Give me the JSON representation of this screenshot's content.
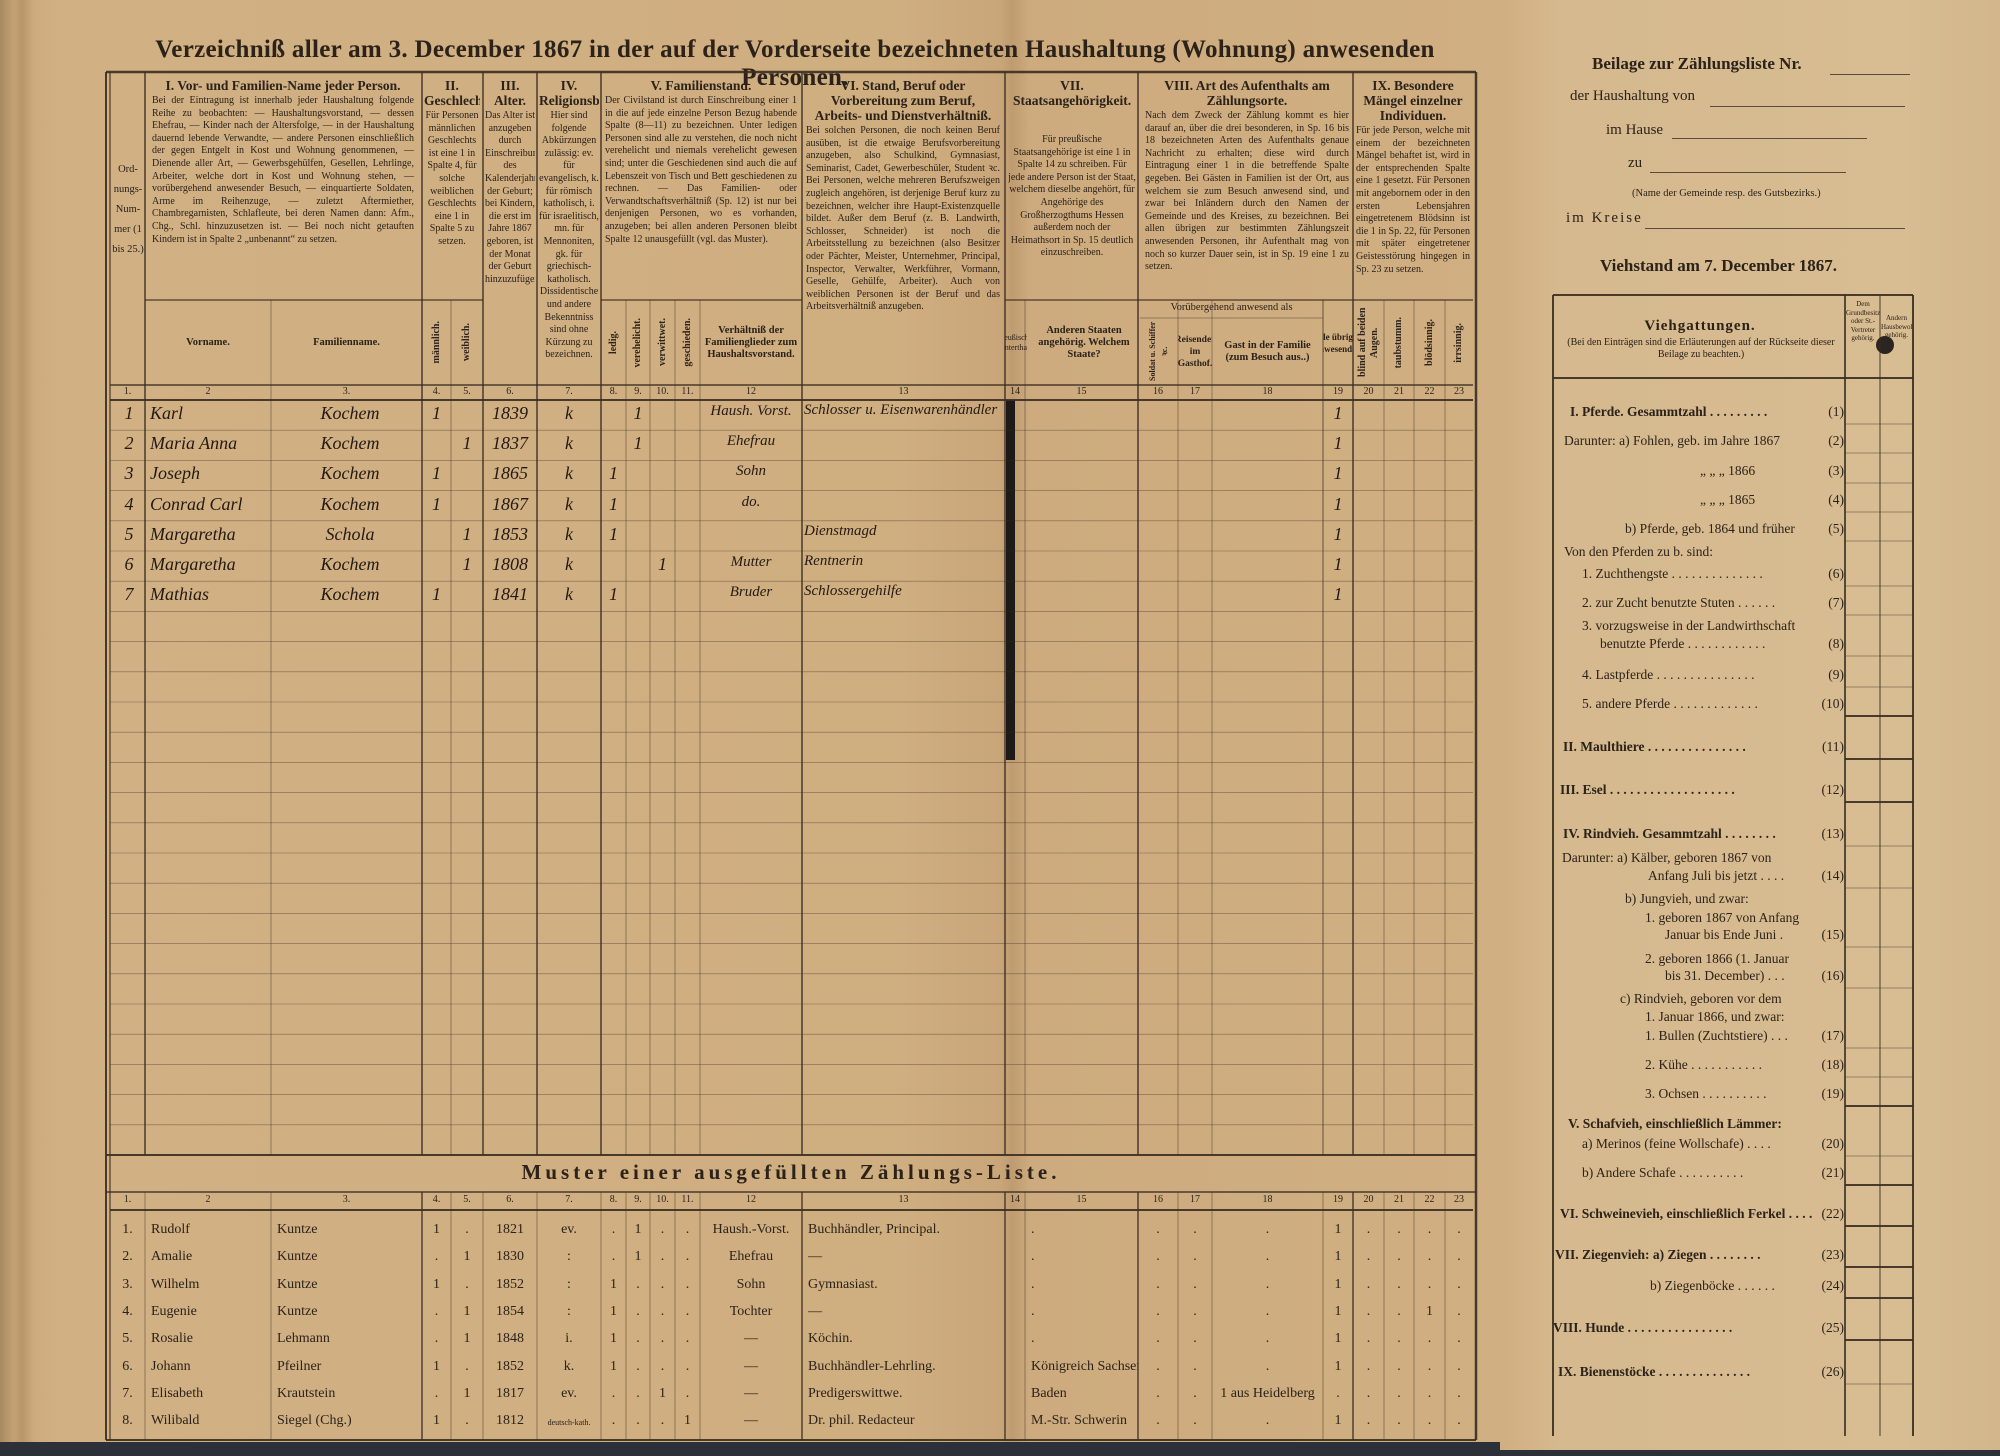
{
  "title": "Verzeichniß aller am 3. December 1867 in der auf der Vorderseite bezeichneten Haushaltung (Wohnung) anwesenden Personen.",
  "header": {
    "ord": "Ord- nungs- Num- mer (1 bis 25.)",
    "col1_title": "I. Vor- und Familien-Name jeder Person.",
    "col1_text": "Bei der Eintragung ist innerhalb jeder Haushaltung folgende Reihe zu beobachten: — Haushaltungsvorstand, — dessen Ehefrau, — Kinder nach der Altersfolge, — in der Haushaltung dauernd lebende Verwandte, — andere Personen einschließlich der gegen Entgelt in Kost und Wohnung genommenen, — Dienende aller Art, — Gewerbsgehülfen, Gesellen, Lehrlinge, Arbeiter, welche dort in Kost und Wohnung stehen, — vorübergehend anwesender Besuch, — einquartierte Soldaten, Arme im Reihenzuge, — zuletzt Aftermiether, Chambregarnisten, Schlafleute, bei deren Namen dann: Afm., Chg., Schl. hinzuzusetzen ist. — Bei noch nicht getauften Kindern ist in Spalte 2 „unbenannt“ zu setzen.",
    "col2_title": "II. Geschlecht.",
    "col2_text": "Für Personen männlichen Geschlechts ist eine 1 in Spalte 4, für solche weiblichen Geschlechts eine 1 in Spalte 5 zu setzen.",
    "col3_title": "III. Alter.",
    "col3_text": "Das Alter ist anzugeben durch Einschreibung des Kalenderjahres der Geburt; bei Kindern, die erst im Jahre 1867 geboren, ist der Monat der Geburt hinzuzufügen.",
    "col4_title": "IV. Religionsbekenntniß.",
    "col4_text": "Hier sind folgende Abkürzungen zulässig: ev. für evangelisch, k. für römisch katholisch, i. für israelitisch, mn. für Mennoniten, gk. für griechisch-katholisch. Dissidentische und andere Bekenntniss sind ohne Kürzung zu bezeichnen.",
    "col5_title": "V. Familienstand.",
    "col5_text": "Der Civilstand ist durch Einschreibung einer 1 in die auf jede einzelne Person Bezug habende Spalte (8—11) zu bezeichnen. Unter ledigen Personen sind alle zu verstehen, die noch nicht verehelicht und niemals verehelicht gewesen sind; unter die Geschiedenen sind auch die auf Lebenszeit von Tisch und Bett geschiedenen zu rechnen. — Das Familien- oder Verwandtschaftsverhältniß (Sp. 12) ist nur bei denjenigen Personen, wo es vorhanden, anzugeben; bei allen anderen Personen bleibt Spalte 12 unausgefüllt (vgl. das Muster).",
    "col6_title": "VI. Stand, Beruf oder Vorbereitung zum Beruf, Arbeits- und Dienstverhältniß.",
    "col6_text": "Bei solchen Personen, die noch keinen Beruf ausüben, ist die etwaige Berufsvorbereitung anzugeben, also Schulkind, Gymnasiast, Seminarist, Cadet, Gewerbeschüler, Student ꝛc. Bei Personen, welche mehreren Berufszweigen zugleich angehören, ist derjenige Beruf kurz zu bezeichnen, welcher ihre Haupt-Existenzquelle bildet. Außer dem Beruf (z. B. Landwirth, Schlosser, Schneider) ist noch die Arbeitsstellung zu bezeichnen (also Besitzer oder Pächter, Meister, Unternehmer, Principal, Inspector, Verwalter, Werkführer, Vormann, Geselle, Gehülfe, Arbeiter). Auch von weiblichen Personen ist der Beruf und das Arbeitsverhältniß anzugeben.",
    "col7_title": "VII. Staatsangehörigkeit.",
    "col7_text": "Für preußische Staatsangehörige ist eine 1 in Spalte 14 zu schreiben. Für jede andere Person ist der Staat, welchem dieselbe angehört, für Angehörige des Großherzogthums Hessen außerdem noch der Heimathsort in Sp. 15 deutlich einzuschreiben.",
    "col8_title": "VIII. Art des Aufenthalts am Zählungsorte.",
    "col8_text": "Nach dem Zweck der Zählung kommt es hier darauf an, über die drei besonderen, in Sp. 16 bis 18 bezeichneten Arten des Aufenthalts genaue Nachricht zu erhalten; diese wird durch Eintragung einer 1 in die betreffende Spalte gegeben. Bei Gästen in Familien ist der Ort, aus welchem sie zum Besuch anwesend sind, und zwar bei Inländern durch den Namen der Gemeinde und des Kreises, zu bezeichnen. Bei allen übrigen zur bestimmten Zählungszeit anwesenden Personen, ihr Aufenthalt mag von noch so kurzer Dauer sein, ist in Sp. 19 eine 1 zu setzen.",
    "col9_title": "IX. Besondere Mängel einzelner Individuen.",
    "col9_text": "Für jede Person, welche mit einem der bezeichneten Mängel behaftet ist, wird in der entsprechenden Spalte eine 1 gesetzt. Für Personen mit angebornem oder in den ersten Lebensjahren eingetretenem Blödsinn ist die 1 in Sp. 22, für Personen mit später eingetretener Geistesstörung hingegen in Sp. 23 zu setzen.",
    "sub": {
      "vorname": "Vorname.",
      "familienname": "Familienname.",
      "maennlich": "männlich.",
      "weiblich": "weiblich.",
      "ledig": "ledig.",
      "verehelicht": "verehelicht.",
      "verwittwet": "verwittwet.",
      "geschieden": "geschieden.",
      "verhaeltniss": "Verhältniß der Familienglieder zum Haushaltsvorstand.",
      "preussisch": "Preußischer Unterthan.",
      "andere_staaten": "Anderen Staaten angehörig. Welchem Staate?",
      "voruebergehend": "Vorübergehend anwesend als",
      "soldat": "Soldat u. Schiffer ꝛc.",
      "reisender": "Reisender im Gasthof.",
      "gast": "Gast in der Familie (zum Besuch aus..)",
      "alle_uebrigen": "Alle übrigen Anwesenden.",
      "blind": "blind auf beiden Augen.",
      "taubstumm": "taubstumm.",
      "bloedsinnig": "blödsinnig.",
      "irrsinnig": "irrsinnig."
    },
    "column_numbers": [
      "1.",
      "2",
      "3.",
      "4.",
      "5.",
      "6.",
      "7.",
      "8.",
      "9.",
      "10.",
      "11.",
      "12",
      "13",
      "14",
      "15",
      "16",
      "17",
      "18",
      "19",
      "20",
      "21",
      "22",
      "23"
    ]
  },
  "entries": [
    {
      "nr": "1",
      "vorname": "Karl",
      "familienname": "Kochem",
      "m": "1",
      "w": "",
      "jahr": "1839",
      "rel": "k",
      "ledig": "",
      "verh": "1",
      "verw": "",
      "gesch": "",
      "verhaeltniss": "Haush. Vorst.",
      "beruf": "Schlosser u. Eisenwarenhändler",
      "c19": "1"
    },
    {
      "nr": "2",
      "vorname": "Maria Anna",
      "familienname": "Kochem",
      "m": "",
      "w": "1",
      "jahr": "1837",
      "rel": "k",
      "ledig": "",
      "verh": "1",
      "verw": "",
      "gesch": "",
      "verhaeltniss": "Ehefrau",
      "beruf": "",
      "c19": "1"
    },
    {
      "nr": "3",
      "vorname": "Joseph",
      "familienname": "Kochem",
      "m": "1",
      "w": "",
      "jahr": "1865",
      "rel": "k",
      "ledig": "1",
      "verh": "",
      "verw": "",
      "gesch": "",
      "verhaeltniss": "Sohn",
      "beruf": "",
      "c19": "1"
    },
    {
      "nr": "4",
      "vorname": "Conrad Carl",
      "familienname": "Kochem",
      "m": "1",
      "w": "",
      "jahr": "1867",
      "rel": "k",
      "ledig": "1",
      "verh": "",
      "verw": "",
      "gesch": "",
      "verhaeltniss": "do.",
      "beruf": "",
      "c19": "1"
    },
    {
      "nr": "5",
      "vorname": "Margaretha",
      "familienname": "Schola",
      "m": "",
      "w": "1",
      "jahr": "1853",
      "rel": "k",
      "ledig": "1",
      "verh": "",
      "verw": "",
      "gesch": "",
      "verhaeltniss": "",
      "beruf": "Dienstmagd",
      "c19": "1"
    },
    {
      "nr": "6",
      "vorname": "Margaretha",
      "familienname": "Kochem",
      "m": "",
      "w": "1",
      "jahr": "1808",
      "rel": "k",
      "ledig": "",
      "verh": "",
      "verw": "1",
      "gesch": "",
      "verhaeltniss": "Mutter",
      "beruf": "Rentnerin",
      "c19": "1"
    },
    {
      "nr": "7",
      "vorname": "Mathias",
      "familienname": "Kochem",
      "m": "1",
      "w": "",
      "jahr": "1841",
      "rel": "k",
      "ledig": "1",
      "verh": "",
      "verw": "",
      "gesch": "",
      "verhaeltniss": "Bruder",
      "beruf": "Schlossergehilfe",
      "c19": "1"
    }
  ],
  "muster": {
    "title": "Muster einer ausgefüllten Zählungs-Liste.",
    "rows": [
      [
        "1.",
        "Rudolf",
        "Kuntze",
        "1",
        ".",
        "1821",
        "ev.",
        ".",
        "1",
        ".",
        ".",
        "Haush.-Vorst.",
        "Buchhändler, Principal.",
        "",
        ".",
        ".",
        ".",
        ".",
        "1",
        ".",
        ".",
        ".",
        "."
      ],
      [
        "2.",
        "Amalie",
        "Kuntze",
        ".",
        "1",
        "1830",
        ":",
        ".",
        "1",
        ".",
        ".",
        "Ehefrau",
        "—",
        "",
        ".",
        ".",
        ".",
        ".",
        "1",
        ".",
        ".",
        ".",
        "."
      ],
      [
        "3.",
        "Wilhelm",
        "Kuntze",
        "1",
        ".",
        "1852",
        ":",
        "1",
        ".",
        ".",
        ".",
        "Sohn",
        "Gymnasiast.",
        "",
        ".",
        ".",
        ".",
        ".",
        "1",
        ".",
        ".",
        ".",
        "."
      ],
      [
        "4.",
        "Eugenie",
        "Kuntze",
        ".",
        "1",
        "1854",
        ":",
        "1",
        ".",
        ".",
        ".",
        "Tochter",
        "—",
        "",
        ".",
        ".",
        ".",
        ".",
        "1",
        ".",
        ".",
        "1",
        "."
      ],
      [
        "5.",
        "Rosalie",
        "Lehmann",
        ".",
        "1",
        "1848",
        "i.",
        "1",
        ".",
        ".",
        ".",
        "—",
        "Köchin.",
        "",
        ".",
        ".",
        ".",
        ".",
        "1",
        ".",
        ".",
        ".",
        "."
      ],
      [
        "6.",
        "Johann",
        "Pfeilner",
        "1",
        ".",
        "1852",
        "k.",
        "1",
        ".",
        ".",
        ".",
        "—",
        "Buchhändler-Lehrling.",
        "",
        "Königreich Sachsen",
        ".",
        ".",
        ".",
        "1",
        ".",
        ".",
        ".",
        "."
      ],
      [
        "7.",
        "Elisabeth",
        "Krautstein",
        ".",
        "1",
        "1817",
        "ev.",
        ".",
        ".",
        "1",
        ".",
        "—",
        "Predigerswittwe.",
        "",
        "Baden",
        ".",
        ".",
        "1 aus Heidelberg",
        ".",
        ".",
        ".",
        ".",
        "."
      ],
      [
        "8.",
        "Wilibald",
        "Siegel (Chg.)",
        "1",
        ".",
        "1812",
        "deutsch-kath.",
        ".",
        ".",
        ".",
        "1",
        "—",
        "Dr. phil. Redacteur",
        "",
        "M.-Str. Schwerin",
        ".",
        ".",
        ".",
        "1",
        ".",
        ".",
        ".",
        "."
      ]
    ]
  },
  "beilage": {
    "title": "Beilage zur Zählungsliste Nr.",
    "haushaltung": "der Haushaltung von",
    "hause": "im Hause",
    "zu": "zu",
    "gemeinde_hint": "(Name der Gemeinde resp. des Gutsbezirks.)",
    "kreise": "im Kreise",
    "viehstand": "Viehstand am 7. December 1867.",
    "table_title": "Viehgattungen.",
    "table_hint": "(Bei den Einträgen sind die Erläuterungen auf der Rückseite dieser Beilage zu beachten.)",
    "col_a": "Dem Grundbesitzer oder St.-Vertreter gehörig.",
    "col_b": "Andern Hausbewohnern gehörig.",
    "items": [
      {
        "label": "I. Pferde.  Gesammtzahl . . . . . . . . .",
        "nr": "(1)"
      },
      {
        "label": "Darunter: a) Fohlen, geb. im Jahre 1867",
        "nr": "(2)"
      },
      {
        "label": "„   „   „  1866",
        "nr": "(3)"
      },
      {
        "label": "„   „   „  1865",
        "nr": "(4)"
      },
      {
        "label": "b) Pferde, geb. 1864 und früher",
        "nr": "(5)"
      },
      {
        "label": "Von den Pferden zu b. sind:",
        "nr": ""
      },
      {
        "label": "1. Zuchthengste . . . . . . . . . . . . . .",
        "nr": "(6)"
      },
      {
        "label": "2. zur Zucht benutzte Stuten . . . . . .",
        "nr": "(7)"
      },
      {
        "label": "3. vorzugsweise in der Landwirthschaft",
        "nr": ""
      },
      {
        "label": "benutzte Pferde . . . . . . . . . . . .",
        "nr": "(8)"
      },
      {
        "label": "4. Lastpferde . . . . . . . . . . . . . . .",
        "nr": "(9)"
      },
      {
        "label": "5. andere Pferde . . . . . . . . . . . . .",
        "nr": "(10)"
      },
      {
        "label": "II. Maulthiere . . . . . . . . . . . . . . .",
        "nr": "(11)"
      },
      {
        "label": "III. Esel . . . . . . . . . . . . . . . . . . .",
        "nr": "(12)"
      },
      {
        "label": "IV. Rindvieh.  Gesammtzahl . . . . . . . .",
        "nr": "(13)"
      },
      {
        "label": "Darunter: a) Kälber, geboren 1867 von",
        "nr": ""
      },
      {
        "label": "Anfang Juli bis jetzt . . . .",
        "nr": "(14)"
      },
      {
        "label": "b) Jungvieh, und zwar:",
        "nr": ""
      },
      {
        "label": "1. geboren 1867 von Anfang",
        "nr": ""
      },
      {
        "label": "Januar bis Ende Juni .",
        "nr": "(15)"
      },
      {
        "label": "2. geboren 1866 (1. Januar",
        "nr": ""
      },
      {
        "label": "bis 31. December) . . .",
        "nr": "(16)"
      },
      {
        "label": "c) Rindvieh, geboren vor dem",
        "nr": ""
      },
      {
        "label": "1. Januar 1866, und zwar:",
        "nr": ""
      },
      {
        "label": "1. Bullen (Zuchtstiere) . . .",
        "nr": "(17)"
      },
      {
        "label": "2. Kühe . . . . . . . . . . .",
        "nr": "(18)"
      },
      {
        "label": "3. Ochsen . . . . . . . . . .",
        "nr": "(19)"
      },
      {
        "label": "V. Schafvieh, einschließlich Lämmer:",
        "nr": ""
      },
      {
        "label": "a) Merinos (feine Wollschafe) . . . .",
        "nr": "(20)"
      },
      {
        "label": "b) Andere Schafe . . . . . . . . . .",
        "nr": "(21)"
      },
      {
        "label": "VI. Schweinevieh, einschließlich Ferkel . . . .",
        "nr": "(22)"
      },
      {
        "label": "VII. Ziegenvieh: a) Ziegen . . . . . . . .",
        "nr": "(23)"
      },
      {
        "label": "b) Ziegenböcke . . . . . .",
        "nr": "(24)"
      },
      {
        "label": "VIII. Hunde . . . . . . . . . . . . . . . .",
        "nr": "(25)"
      },
      {
        "label": "IX. Bienenstöcke . . . . . . . . . . . . . .",
        "nr": "(26)"
      }
    ]
  },
  "colors": {
    "paper": "#cfae80",
    "ink": "#2b2219",
    "background": "#2c3038"
  }
}
